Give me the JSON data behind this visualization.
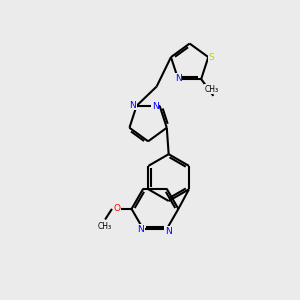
{
  "background_color": "#ebebeb",
  "bond_color": "#000000",
  "atom_colors": {
    "N": "#0000ff",
    "S": "#cccc00",
    "O": "#ff0000",
    "C": "#000000"
  }
}
